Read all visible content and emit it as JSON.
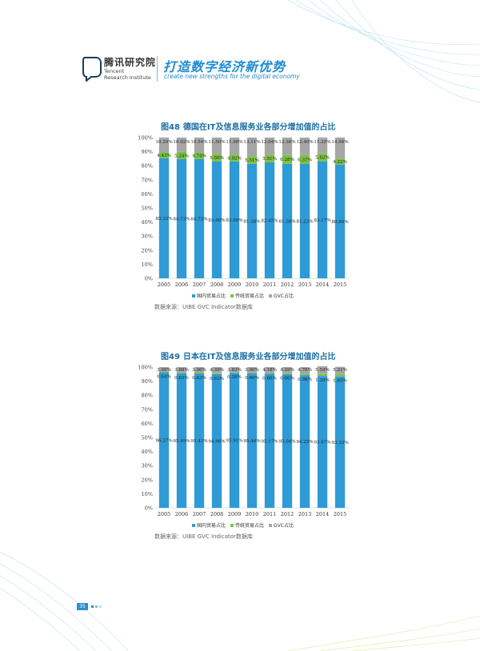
{
  "header": {
    "brand_cn": "腾讯研究院",
    "brand_en_line1": "Tencent",
    "brand_en_line2": "Research Institute",
    "slogan_cn": "打造数字经济新优势",
    "slogan_en": "create new strengths for the digital economy"
  },
  "colors": {
    "domestic": "#2e9bd6",
    "traditional": "#7cc242",
    "gvc": "#a6a6a6",
    "accent": "#1f8bd0",
    "title": "#1c6fa3"
  },
  "page_number": "35",
  "chart_data": [
    {
      "type": "bar",
      "stacked": true,
      "title": "图48  德国在IT及信息服务业各部分增加值的占比",
      "fig_label": "图48",
      "title_text": "德国在IT及信息服务业各部分增加值的占比",
      "categories": [
        "2005",
        "2006",
        "2007",
        "2008",
        "2009",
        "2010",
        "2011",
        "2012",
        "2013",
        "2014",
        "2015"
      ],
      "ylim": [
        0,
        100
      ],
      "yticks": [
        "0%",
        "10%",
        "20%",
        "30%",
        "40%",
        "50%",
        "60%",
        "70%",
        "80%",
        "90%",
        "100%"
      ],
      "grid": false,
      "legend_position": "bottom",
      "series": [
        {
          "name": "国内贸易占比",
          "values": [
            85.33,
            84.73,
            84.72,
            83.0,
            83.09,
            81.38,
            82.45,
            81.38,
            81.23,
            83.17,
            80.84
          ],
          "labels": [
            "85.33%",
            "84.73%",
            "84.72%",
            "83.00%",
            "83.09%",
            "81.38%",
            "82.45%",
            "81.38%",
            "81.23%",
            "83.17%",
            "80.84%"
          ]
        },
        {
          "name": "传统贸易占比",
          "values": [
            4.43,
            5.24,
            4.74,
            5.5,
            4.92,
            5.51,
            5.51,
            6.28,
            6.37,
            5.62,
            4.22
          ],
          "labels": [
            "4.43%",
            "5.24%",
            "4.74%",
            "5.50%",
            "4.92%",
            "5.51%",
            "5.51%",
            "6.28%",
            "6.37%",
            "5.62%",
            "4.22%"
          ]
        },
        {
          "name": "GVC占比",
          "values": [
            10.29,
            10.02,
            10.54,
            11.5,
            11.98,
            13.11,
            12.04,
            12.36,
            12.4,
            11.25,
            14.94
          ],
          "labels": [
            "10.29%",
            "10.02%",
            "10.54%",
            "11.50%",
            "11.98%",
            "13.11%",
            "12.04%",
            "12.36%",
            "12.40%",
            "11.25%",
            "14.94%"
          ]
        }
      ],
      "source": "数据来源：UIBE GVC Indicator数据库"
    },
    {
      "type": "bar",
      "stacked": true,
      "title": "图49  日本在IT及信息服务业各部分增加值的占比",
      "fig_label": "图49",
      "title_text": "日本在IT及信息服务业各部分增加值的占比",
      "categories": [
        "2005",
        "2006",
        "2007",
        "2008",
        "2009",
        "2010",
        "2011",
        "2012",
        "2013",
        "2014",
        "2015"
      ],
      "ylim": [
        0,
        100
      ],
      "yticks": [
        "0%",
        "10%",
        "20%",
        "30%",
        "40%",
        "50%",
        "60%",
        "70%",
        "80%",
        "90%",
        "100%"
      ],
      "grid": false,
      "legend_position": "bottom",
      "series": [
        {
          "name": "国内贸易占比",
          "values": [
            96.27,
            95.49,
            95.41,
            94.96,
            95.91,
            95.44,
            95.17,
            95.04,
            94.25,
            93.67,
            93.33
          ],
          "labels": [
            "96.27%",
            "95.49%",
            "95.41%",
            "94.96%",
            "95.91%",
            "95.44%",
            "95.17%",
            "95.04%",
            "94.25%",
            "93.67%",
            "93.33%"
          ]
        },
        {
          "name": "传统贸易占比",
          "values": [
            0.64,
            0.63,
            0.63,
            0.63,
            0.26,
            0.66,
            0.66,
            0.66,
            0.98,
            1.39,
            1.65
          ],
          "labels": [
            "0.64%",
            "0.63%",
            "0.63%",
            "0.63%",
            "0.26%",
            "0.66%",
            "0.66%",
            "0.66%",
            "0.98%",
            "1.39%",
            "1.65%"
          ]
        },
        {
          "name": "GVC占比",
          "values": [
            3.09,
            3.88,
            3.96,
            4.39,
            3.82,
            3.9,
            4.18,
            4.29,
            4.76,
            5.54,
            5.21
          ],
          "labels": [
            "3.09%",
            "3.88%",
            "3.96%",
            "4.39%",
            "3.82%",
            "3.90%",
            "4.18%",
            "4.29%",
            "4.76%",
            "5.54%",
            "5.21%"
          ]
        }
      ],
      "source": "数据来源：UIBE GVC Indicator数据库"
    }
  ]
}
